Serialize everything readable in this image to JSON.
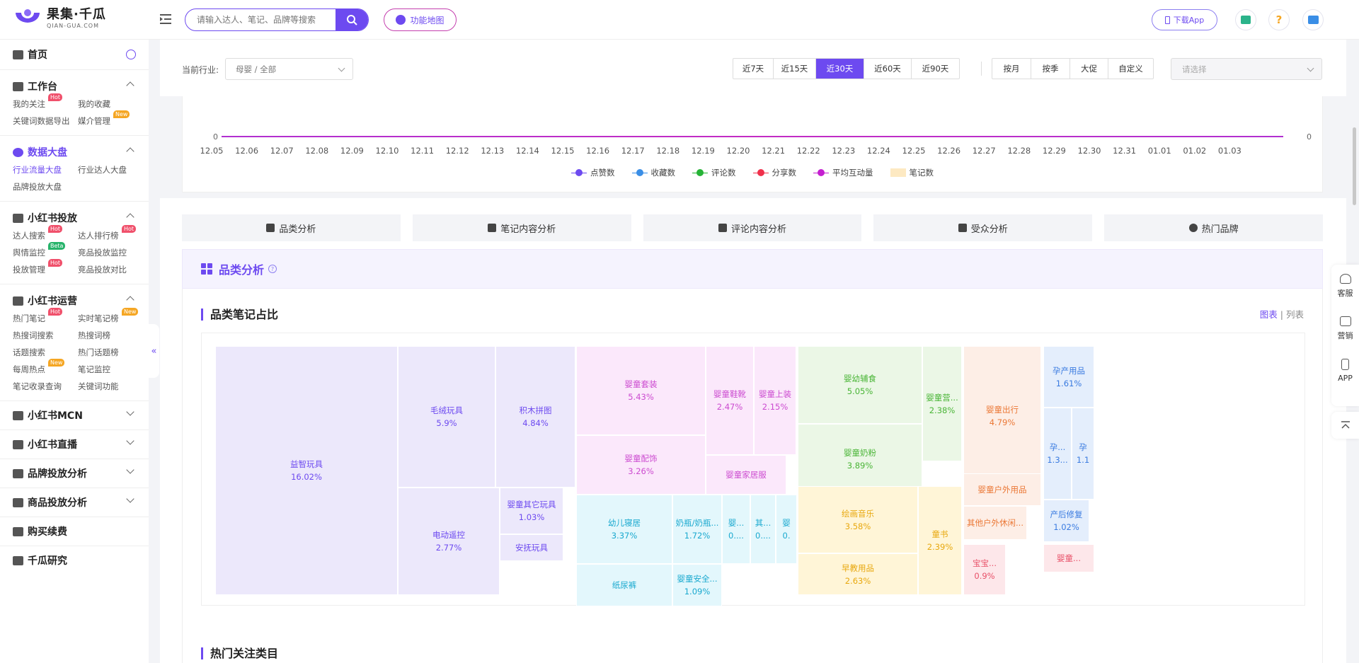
{
  "header": {
    "logo_cn": "果集·千瓜",
    "logo_en": "QIAN-GUA.COM",
    "search_placeholder": "请输入达人、笔记、品牌等搜索",
    "func_map": "功能地图",
    "download_app": "下载App"
  },
  "sidebar": {
    "home": "首页",
    "sections": [
      {
        "title": "工作台",
        "open": true,
        "items": [
          {
            "label": "我的关注",
            "badge": "Hot"
          },
          {
            "label": "我的收藏"
          },
          {
            "label": "关键词数据导出"
          },
          {
            "label": "媒介管理",
            "badge": "New"
          }
        ]
      },
      {
        "title": "数据大盘",
        "open": true,
        "active": true,
        "items": [
          {
            "label": "行业流量大盘",
            "active": true
          },
          {
            "label": "行业达人大盘"
          },
          {
            "label": "品牌投放大盘"
          }
        ]
      },
      {
        "title": "小红书投放",
        "open": true,
        "items": [
          {
            "label": "达人搜索",
            "badge": "Hot"
          },
          {
            "label": "达人排行榜",
            "badge": "Hot"
          },
          {
            "label": "舆情监控",
            "badge": "Beta"
          },
          {
            "label": "竞品投放监控"
          },
          {
            "label": "投放管理",
            "badge": "Hot"
          },
          {
            "label": "竞品投放对比"
          }
        ]
      },
      {
        "title": "小红书运营",
        "open": true,
        "items": [
          {
            "label": "热门笔记",
            "badge": "Hot"
          },
          {
            "label": "实时笔记榜",
            "badge": "New"
          },
          {
            "label": "热搜词搜索"
          },
          {
            "label": "热搜词榜"
          },
          {
            "label": "话题搜索"
          },
          {
            "label": "热门话题榜"
          },
          {
            "label": "每周热点",
            "badge": "New"
          },
          {
            "label": "笔记监控"
          },
          {
            "label": "笔记收录查询"
          },
          {
            "label": "关键词功能"
          }
        ]
      }
    ],
    "collapsed": [
      "小红书MCN",
      "小红书直播",
      "品牌投放分析",
      "商品投放分析"
    ],
    "bottom": [
      "购买续费",
      "千瓜研究"
    ]
  },
  "filters": {
    "industry_label": "当前行业:",
    "industry_value": "母婴 / 全部",
    "ranges": [
      "近7天",
      "近15天",
      "近30天",
      "近60天",
      "近90天"
    ],
    "range_selected": "近30天",
    "periods": [
      "按月",
      "按季",
      "大促",
      "自定义"
    ],
    "picker_placeholder": "请选择"
  },
  "trend_chart": {
    "left_zero": "0",
    "right_zero": "0",
    "x_ticks": [
      "12.05",
      "12.06",
      "12.07",
      "12.08",
      "12.09",
      "12.10",
      "12.11",
      "12.12",
      "12.13",
      "12.14",
      "12.15",
      "12.16",
      "12.17",
      "12.18",
      "12.19",
      "12.20",
      "12.21",
      "12.22",
      "12.23",
      "12.24",
      "12.25",
      "12.26",
      "12.27",
      "12.28",
      "12.29",
      "12.30",
      "12.31",
      "01.01",
      "01.02",
      "01.03"
    ],
    "legend": [
      {
        "name": "点赞数",
        "color": "#6d4af0"
      },
      {
        "name": "收藏数",
        "color": "#3a8ee6"
      },
      {
        "name": "评论数",
        "color": "#26b336"
      },
      {
        "name": "分享数",
        "color": "#f0304b"
      },
      {
        "name": "平均互动量",
        "color": "#c41fd0"
      },
      {
        "name": "笔记数",
        "color": "#fde9c2"
      }
    ]
  },
  "tabs": [
    "品类分析",
    "笔记内容分析",
    "评论内容分析",
    "受众分析",
    "热门品牌"
  ],
  "panel": {
    "title": "品类分析",
    "help": "?",
    "subtitle": "品类笔记占比",
    "view_chart": "图表",
    "view_sep": "|",
    "view_list": "列表",
    "hot_title": "热门关注类目"
  },
  "chart_data": {
    "type": "treemap",
    "title": "品类笔记占比",
    "cells": [
      {
        "label": "益智玩具",
        "value": "16.02%",
        "color": "c-purple"
      },
      {
        "label": "毛绒玩具",
        "value": "5.9%",
        "color": "c-purple"
      },
      {
        "label": "积木拼图",
        "value": "4.84%",
        "color": "c-purple"
      },
      {
        "label": "电动遥控",
        "value": "2.77%",
        "color": "c-purple"
      },
      {
        "label": "婴童其它玩具",
        "value": "1.03%",
        "color": "c-purple"
      },
      {
        "label": "安抚玩具",
        "value": "",
        "color": "c-purple"
      },
      {
        "label": "婴童套装",
        "value": "5.43%",
        "color": "c-pink"
      },
      {
        "label": "婴童鞋靴",
        "value": "2.47%",
        "color": "c-pink"
      },
      {
        "label": "婴童上装",
        "value": "2.15%",
        "color": "c-pink"
      },
      {
        "label": "婴童配饰",
        "value": "3.26%",
        "color": "c-pink"
      },
      {
        "label": "婴童家居服",
        "value": "",
        "color": "c-pink"
      },
      {
        "label": "幼儿寝居",
        "value": "3.37%",
        "color": "c-cyan"
      },
      {
        "label": "奶瓶/奶瓶...",
        "value": "1.72%",
        "color": "c-cyan"
      },
      {
        "label": "婴...",
        "value": "0....",
        "color": "c-cyan"
      },
      {
        "label": "其...",
        "value": "0....",
        "color": "c-cyan"
      },
      {
        "label": "婴",
        "value": "0.",
        "color": "c-cyan"
      },
      {
        "label": "纸尿裤",
        "value": "",
        "color": "c-cyan"
      },
      {
        "label": "婴童安全...",
        "value": "1.09%",
        "color": "c-cyan"
      },
      {
        "label": "婴幼辅食",
        "value": "5.05%",
        "color": "c-green"
      },
      {
        "label": "婴童营...",
        "value": "2.38%",
        "color": "c-green"
      },
      {
        "label": "婴童奶粉",
        "value": "3.89%",
        "color": "c-green"
      },
      {
        "label": "绘画音乐",
        "value": "3.58%",
        "color": "c-yellow"
      },
      {
        "label": "童书",
        "value": "2.39%",
        "color": "c-yellow"
      },
      {
        "label": "早教用品",
        "value": "2.63%",
        "color": "c-yellow"
      },
      {
        "label": "婴童出行",
        "value": "4.79%",
        "color": "c-orange"
      },
      {
        "label": "婴童户外用品",
        "value": "",
        "color": "c-orange"
      },
      {
        "label": "其他户外休闲...",
        "value": "",
        "color": "c-orange"
      },
      {
        "label": "孕产用品",
        "value": "1.61%",
        "color": "c-blue"
      },
      {
        "label": "孕...",
        "value": "1.3...",
        "color": "c-blue"
      },
      {
        "label": "孕",
        "value": "1.1",
        "color": "c-blue"
      },
      {
        "label": "产后修复",
        "value": "1.02%",
        "color": "c-blue"
      },
      {
        "label": "宝宝...",
        "value": "0.9%",
        "color": "c-rose"
      },
      {
        "label": "婴童...",
        "value": "",
        "color": "c-rose"
      }
    ]
  },
  "float_menu": [
    "客服",
    "营销",
    "APP"
  ]
}
